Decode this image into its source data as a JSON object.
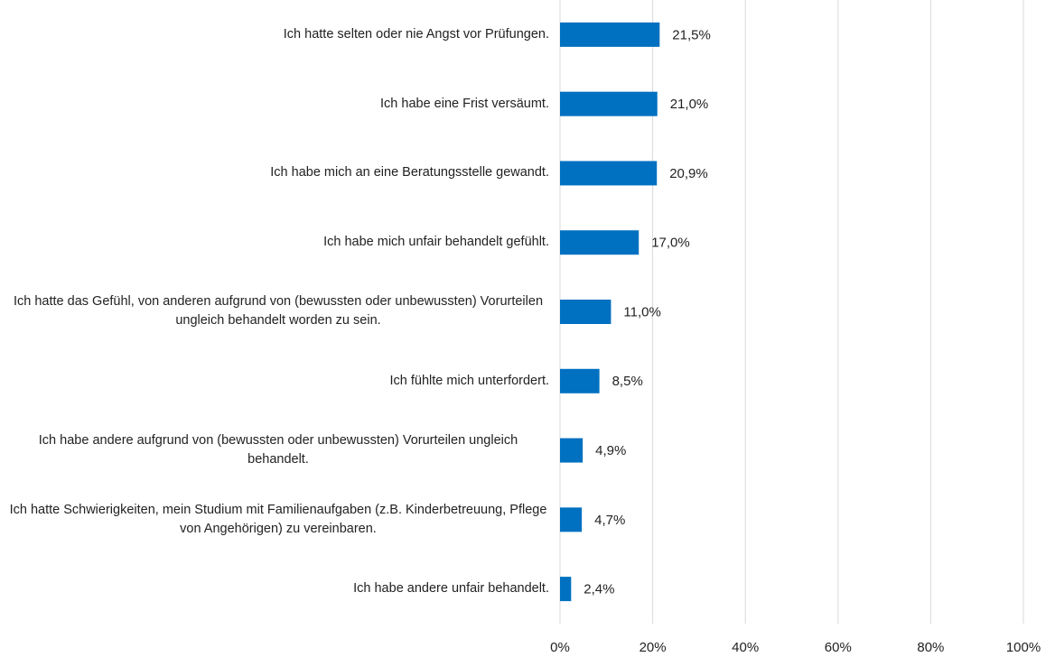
{
  "chart_data": {
    "type": "bar",
    "orientation": "horizontal",
    "categories": [
      "Ich hatte selten oder nie Angst vor Prüfungen.",
      "Ich habe eine Frist versäumt.",
      "Ich habe mich an eine Beratungsstelle gewandt.",
      "Ich habe mich unfair behandelt gefühlt.",
      "Ich hatte das Gefühl, von anderen aufgrund von (bewussten oder unbewussten) Vorurteilen ungleich behandelt worden zu sein.",
      "Ich fühlte mich unterfordert.",
      "Ich habe andere aufgrund von (bewussten oder unbewussten) Vorurteilen ungleich behandelt.",
      "Ich hatte Schwierigkeiten, mein Studium mit Familienaufgaben (z.B. Kinderbetreuung, Pflege von Angehörigen) zu vereinbaren.",
      "Ich habe andere unfair behandelt."
    ],
    "values": [
      21.5,
      21.0,
      20.9,
      17.0,
      11.0,
      8.5,
      4.9,
      4.7,
      2.4
    ],
    "value_labels": [
      "21,5%",
      "21,0%",
      "20,9%",
      "17,0%",
      "11,0%",
      "8,5%",
      "4,9%",
      "4,7%",
      "2,4%"
    ],
    "color": "#0070c0",
    "xlim": [
      0,
      100
    ],
    "xticks": [
      {
        "value": 0,
        "label": "0%"
      },
      {
        "value": 20,
        "label": "20%"
      },
      {
        "value": 40,
        "label": "40%"
      },
      {
        "value": 60,
        "label": "60%"
      },
      {
        "value": 80,
        "label": "80%"
      },
      {
        "value": 100,
        "label": "100%"
      }
    ],
    "grid": true
  }
}
